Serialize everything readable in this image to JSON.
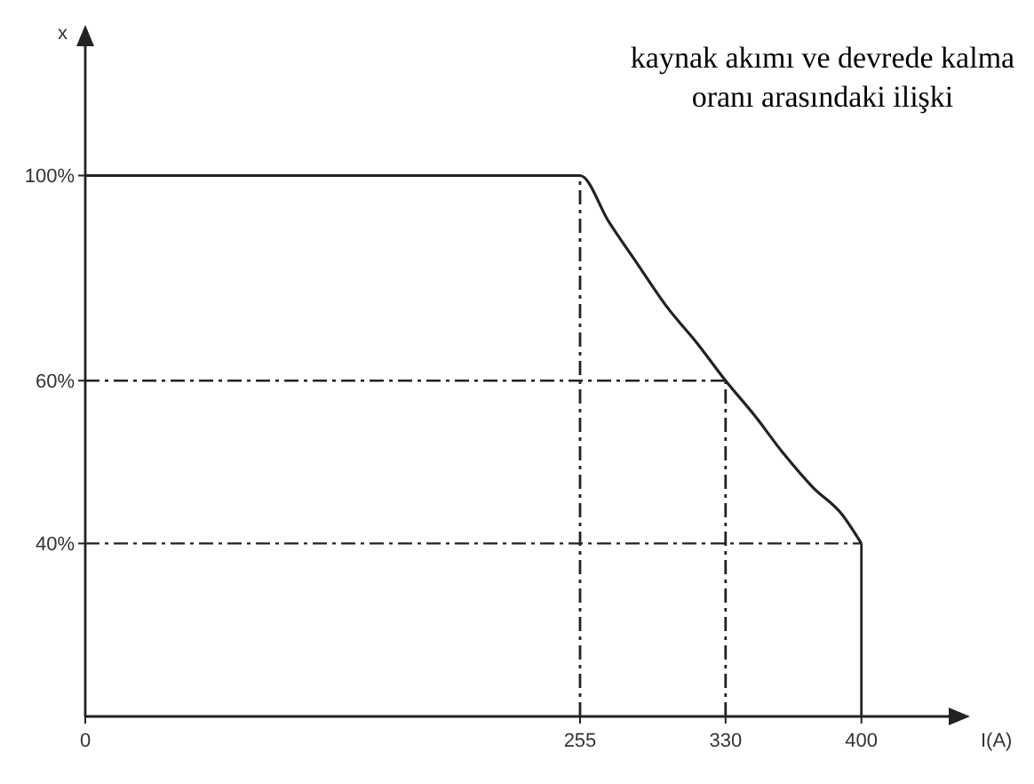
{
  "chart_data": {
    "type": "line",
    "title": "kaynak akımı ve devrede kalma oranı arasındaki ilişki",
    "xlabel": "I(A)",
    "ylabel": "x",
    "x": [
      0,
      255,
      270,
      285,
      300,
      315,
      330,
      345,
      360,
      375,
      390,
      400
    ],
    "series": [
      {
        "color": "#222222",
        "values": [
          100,
          100,
          89,
          80,
          72,
          66,
          60,
          55,
          50,
          46,
          43,
          40
        ]
      }
    ],
    "xlim": [
      0,
      445
    ],
    "xticks": [
      0,
      255,
      330,
      400
    ],
    "log": "y",
    "ylim": [
      26,
      138
    ],
    "yticks": [
      {
        "value": 40,
        "label": "40%"
      },
      {
        "value": 60,
        "label": "60%"
      },
      {
        "value": 100,
        "label": "100%"
      }
    ],
    "ref_lines": [
      {
        "axis": "y",
        "value": 60,
        "line_style": "dashdot"
      },
      {
        "axis": "y",
        "value": 40,
        "line_style": "dashdot"
      },
      {
        "axis": "x",
        "value": 255,
        "line_style": "dashdot"
      },
      {
        "axis": "x",
        "value": 330,
        "line_style": "dashdot"
      },
      {
        "axis": "x",
        "value": 400,
        "line_style": "solid"
      }
    ],
    "grid": false,
    "marker": "none",
    "line_style": "solid"
  }
}
